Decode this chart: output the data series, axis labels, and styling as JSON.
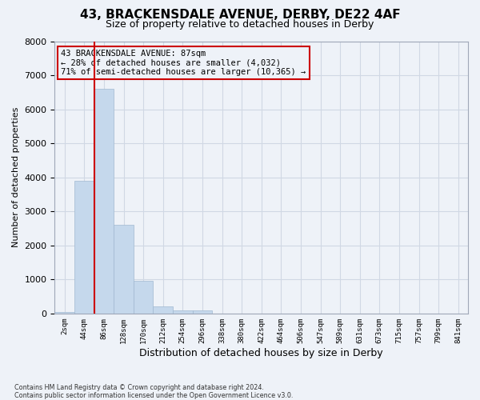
{
  "title_line1": "43, BRACKENSDALE AVENUE, DERBY, DE22 4AF",
  "title_line2": "Size of property relative to detached houses in Derby",
  "xlabel": "Distribution of detached houses by size in Derby",
  "ylabel": "Number of detached properties",
  "footnote": "Contains HM Land Registry data © Crown copyright and database right 2024.\nContains public sector information licensed under the Open Government Licence v3.0.",
  "annotation_line1": "43 BRACKENSDALE AVENUE: 87sqm",
  "annotation_line2": "← 28% of detached houses are smaller (4,032)",
  "annotation_line3": "71% of semi-detached houses are larger (10,365) →",
  "bar_color": "#c5d8ec",
  "bar_edge_color": "#a0b8d0",
  "grid_color": "#d0d8e4",
  "property_line_color": "#cc0000",
  "annotation_box_color": "#cc0000",
  "bin_labels": [
    "2sqm",
    "44sqm",
    "86sqm",
    "128sqm",
    "170sqm",
    "212sqm",
    "254sqm",
    "296sqm",
    "338sqm",
    "380sqm",
    "422sqm",
    "464sqm",
    "506sqm",
    "547sqm",
    "589sqm",
    "631sqm",
    "673sqm",
    "715sqm",
    "757sqm",
    "799sqm",
    "841sqm"
  ],
  "bar_values": [
    50,
    3900,
    6600,
    2600,
    950,
    200,
    100,
    80,
    0,
    0,
    0,
    0,
    0,
    0,
    0,
    0,
    0,
    0,
    0,
    0,
    0
  ],
  "property_bin_index": 1.5,
  "ylim": [
    0,
    8000
  ],
  "yticks": [
    0,
    1000,
    2000,
    3000,
    4000,
    5000,
    6000,
    7000,
    8000
  ],
  "background_color": "#eef2f8"
}
